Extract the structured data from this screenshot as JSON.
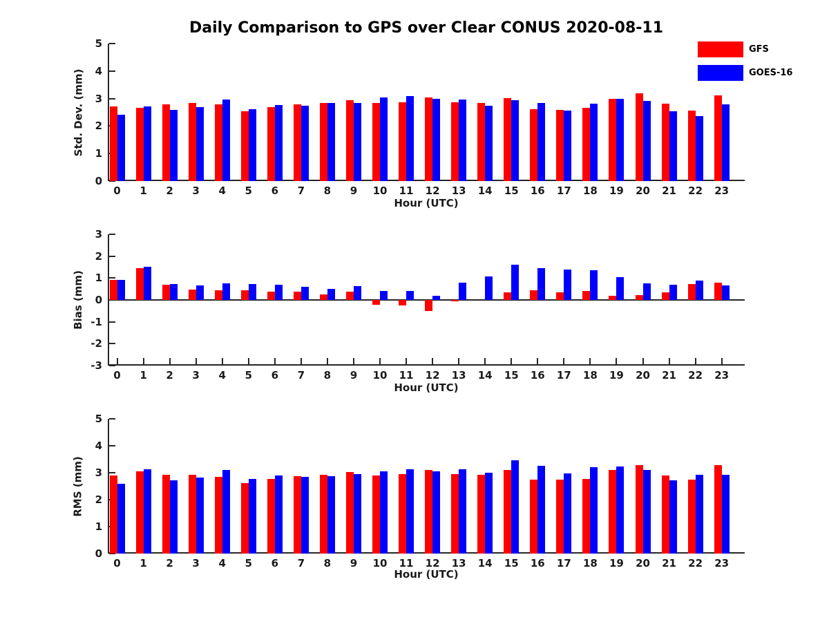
{
  "title": "Daily Comparison to GPS over Clear CONUS 2020-08-11",
  "colors": {
    "axis": "#262626",
    "gfs": "#ff0000",
    "goes16": "#0000ff"
  },
  "legend": {
    "items": [
      {
        "label": "GFS",
        "color": "#ff0000"
      },
      {
        "label": "GOES-16",
        "color": "#0000ff"
      }
    ]
  },
  "chart_data": [
    {
      "type": "bar",
      "panel": "std-dev",
      "ylabel": "Std. Dev. (mm)",
      "xlabel": "Hour (UTC)",
      "ylim": [
        0,
        5
      ],
      "yticks": [
        0,
        1,
        2,
        3,
        4,
        5
      ],
      "grid": false,
      "x_ticks_inward": false,
      "zero_line": false,
      "categories": [
        "0",
        "1",
        "2",
        "3",
        "4",
        "5",
        "6",
        "7",
        "8",
        "9",
        "10",
        "11",
        "12",
        "13",
        "14",
        "15",
        "16",
        "17",
        "18",
        "19",
        "20",
        "21",
        "22",
        "23"
      ],
      "series": [
        {
          "name": "GFS",
          "color": "#ff0000",
          "values": [
            2.72,
            2.66,
            2.79,
            2.83,
            2.78,
            2.53,
            2.7,
            2.8,
            2.85,
            2.93,
            2.84,
            2.87,
            3.03,
            2.86,
            2.83,
            3.02,
            2.61,
            2.6,
            2.66,
            2.99,
            3.2,
            2.82,
            2.57,
            3.12
          ]
        },
        {
          "name": "GOES-16",
          "color": "#0000ff",
          "values": [
            2.42,
            2.72,
            2.58,
            2.68,
            2.97,
            2.62,
            2.76,
            2.74,
            2.83,
            2.84,
            3.03,
            3.08,
            2.98,
            2.96,
            2.73,
            2.93,
            2.83,
            2.56,
            2.81,
            3.0,
            2.92,
            2.55,
            2.37,
            2.8
          ]
        }
      ]
    },
    {
      "type": "bar",
      "panel": "bias",
      "ylabel": "Bias (mm)",
      "xlabel": "Hour (UTC)",
      "ylim": [
        -3,
        3
      ],
      "yticks": [
        3,
        2,
        1,
        0,
        -1,
        -2,
        -3
      ],
      "grid": false,
      "x_ticks_inward": true,
      "zero_line": true,
      "categories": [
        "0",
        "1",
        "2",
        "3",
        "4",
        "5",
        "6",
        "7",
        "8",
        "9",
        "10",
        "11",
        "12",
        "13",
        "14",
        "15",
        "16",
        "17",
        "18",
        "19",
        "20",
        "21",
        "22",
        "23"
      ],
      "series": [
        {
          "name": "GFS",
          "color": "#ff0000",
          "values": [
            0.92,
            1.45,
            0.7,
            0.46,
            0.43,
            0.43,
            0.39,
            0.39,
            0.26,
            0.38,
            -0.23,
            -0.25,
            -0.49,
            -0.06,
            0.0,
            0.35,
            0.45,
            0.36,
            0.4,
            0.18,
            0.23,
            0.34,
            0.73,
            0.78
          ]
        },
        {
          "name": "GOES-16",
          "color": "#0000ff",
          "values": [
            0.93,
            1.52,
            0.73,
            0.66,
            0.76,
            0.73,
            0.7,
            0.6,
            0.49,
            0.64,
            0.4,
            0.4,
            0.18,
            0.78,
            1.07,
            1.6,
            1.45,
            1.4,
            1.37,
            1.05,
            0.77,
            0.7,
            0.9,
            0.67
          ]
        }
      ]
    },
    {
      "type": "bar",
      "panel": "rms",
      "ylabel": "RMS (mm)",
      "xlabel": "Hour (UTC)",
      "ylim": [
        0,
        5
      ],
      "yticks": [
        0,
        1,
        2,
        3,
        4,
        5
      ],
      "grid": false,
      "x_ticks_inward": false,
      "zero_line": false,
      "categories": [
        "0",
        "1",
        "2",
        "3",
        "4",
        "5",
        "6",
        "7",
        "8",
        "9",
        "10",
        "11",
        "12",
        "13",
        "14",
        "15",
        "16",
        "17",
        "18",
        "19",
        "20",
        "21",
        "22",
        "23"
      ],
      "series": [
        {
          "name": "GFS",
          "color": "#ff0000",
          "values": [
            2.9,
            3.06,
            2.93,
            2.93,
            2.85,
            2.61,
            2.77,
            2.86,
            2.92,
            3.03,
            2.9,
            2.94,
            3.11,
            2.95,
            2.93,
            3.1,
            2.74,
            2.74,
            2.76,
            3.09,
            3.29,
            2.9,
            2.74,
            3.27
          ]
        },
        {
          "name": "GOES-16",
          "color": "#0000ff",
          "values": [
            2.6,
            3.14,
            2.72,
            2.83,
            3.11,
            2.77,
            2.9,
            2.85,
            2.88,
            2.94,
            3.06,
            3.13,
            3.05,
            3.14,
            3.01,
            3.45,
            3.26,
            2.98,
            3.2,
            3.24,
            3.09,
            2.73,
            2.93,
            2.93
          ]
        }
      ]
    }
  ]
}
